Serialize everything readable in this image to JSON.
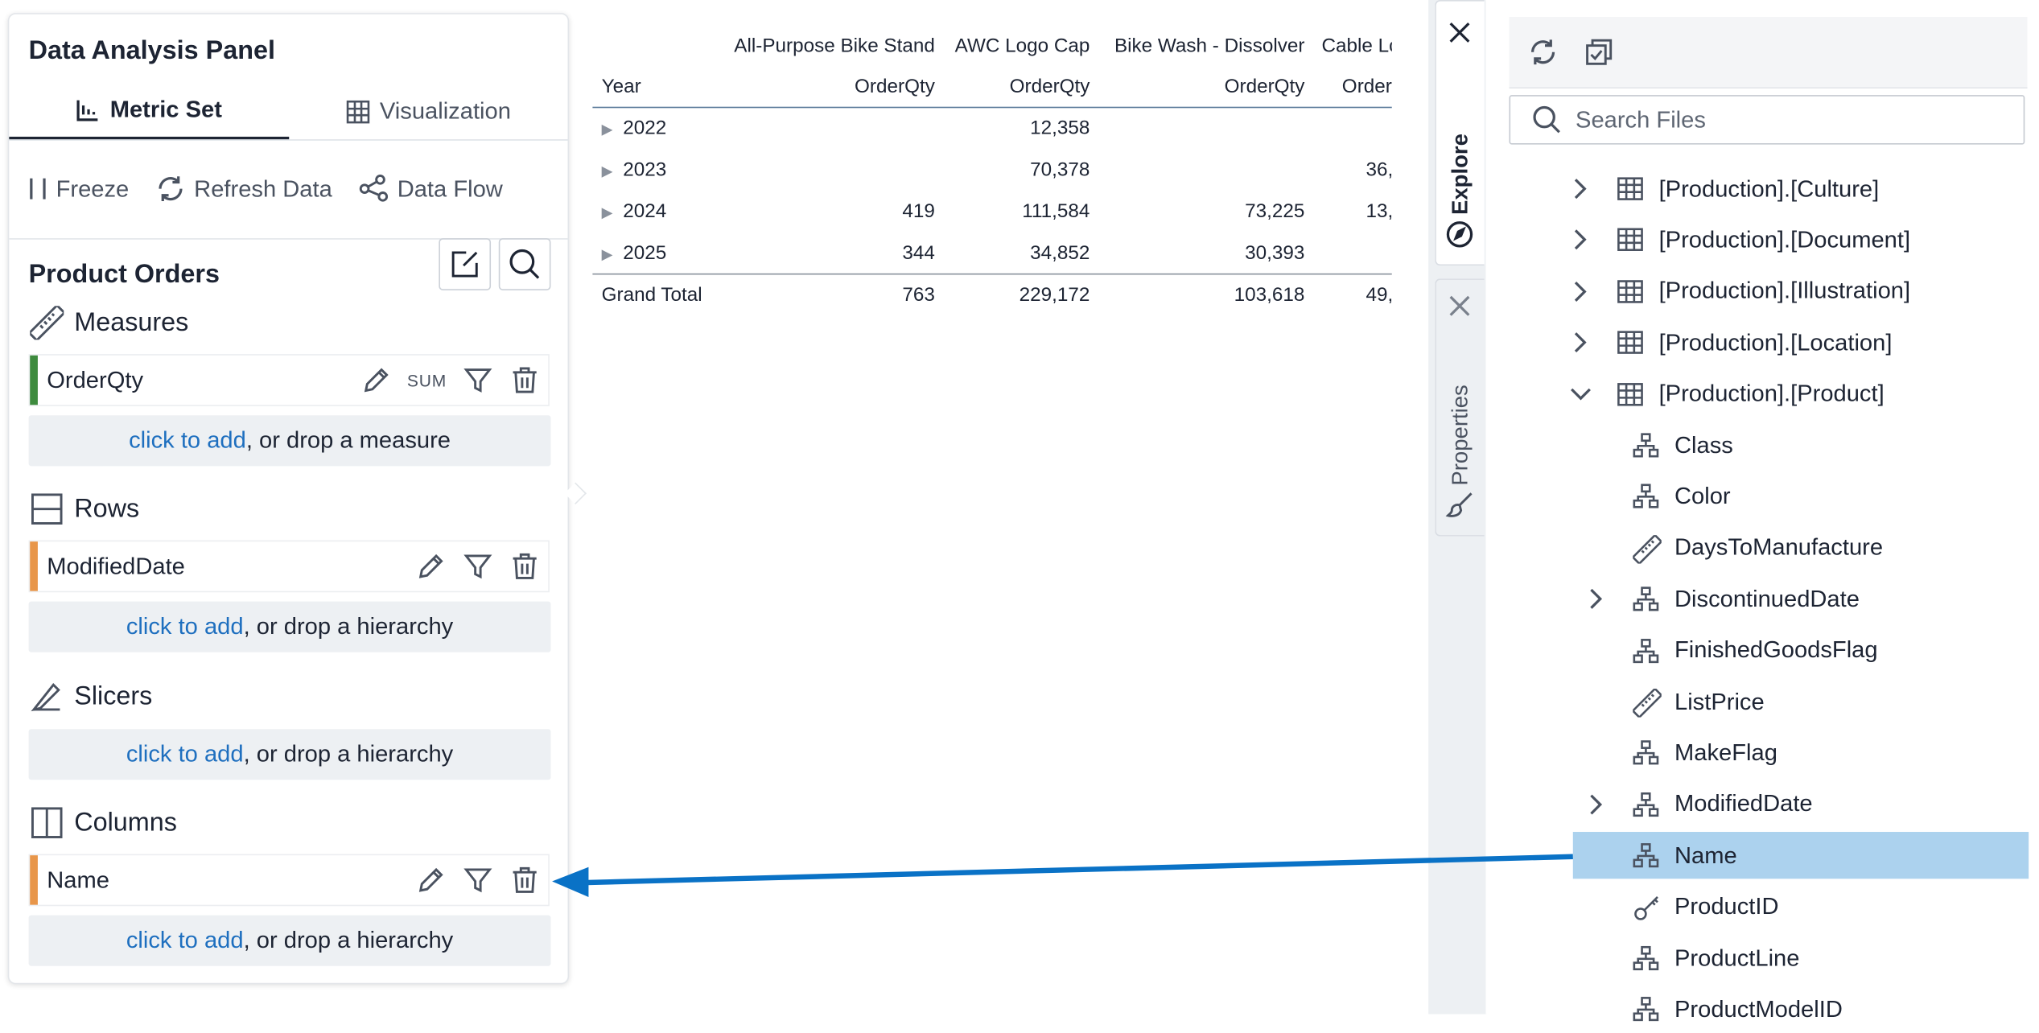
{
  "panel": {
    "title": "Data Analysis Panel",
    "tabs": [
      {
        "label": "Metric Set",
        "icon": "ruler-chart-icon",
        "active": true
      },
      {
        "label": "Visualization",
        "icon": "grid-icon",
        "active": false
      }
    ],
    "toolbar": {
      "freeze": "Freeze",
      "refresh": "Refresh Data",
      "dataflow": "Data Flow"
    },
    "metric_set_title": "Product Orders",
    "sections": {
      "measures": {
        "label": "Measures",
        "items": [
          {
            "name": "OrderQty",
            "aggregation": "SUM",
            "color": "#3e8b3e"
          }
        ],
        "drop": {
          "link": "click to add",
          "rest": ", or drop a measure"
        }
      },
      "rows": {
        "label": "Rows",
        "items": [
          {
            "name": "ModifiedDate",
            "color": "#e8964a"
          }
        ],
        "drop": {
          "link": "click to add",
          "rest": ", or drop a hierarchy"
        }
      },
      "slicers": {
        "label": "Slicers",
        "drop": {
          "link": "click to add",
          "rest": ", or drop a hierarchy"
        }
      },
      "columns": {
        "label": "Columns",
        "items": [
          {
            "name": "Name",
            "color": "#e8964a"
          }
        ],
        "drop": {
          "link": "click to add",
          "rest": ", or drop a hierarchy"
        }
      }
    }
  },
  "pivot": {
    "column_headers": [
      "All-Purpose Bike Stand",
      "AWC Logo Cap",
      "Bike Wash - Dissolver",
      "Cable Lo"
    ],
    "row_header": "Year",
    "measure_headers": [
      "OrderQty",
      "OrderQty",
      "OrderQty",
      "Order"
    ],
    "rows": [
      {
        "year": "2022",
        "values": [
          "",
          "12,358",
          "",
          ""
        ]
      },
      {
        "year": "2023",
        "values": [
          "",
          "70,378",
          "",
          "36,"
        ]
      },
      {
        "year": "2024",
        "values": [
          "419",
          "111,584",
          "73,225",
          "13,"
        ]
      },
      {
        "year": "2025",
        "values": [
          "344",
          "34,852",
          "30,393",
          ""
        ]
      }
    ],
    "grand_total": {
      "label": "Grand Total",
      "values": [
        "763",
        "229,172",
        "103,618",
        "49,:"
      ]
    }
  },
  "side_tabs": {
    "explore": "Explore",
    "properties": "Properties"
  },
  "explorer": {
    "search_placeholder": "Search Files",
    "tree": [
      {
        "label": "[Production].[Culture]",
        "type": "table",
        "expander": "collapsed",
        "level": 0
      },
      {
        "label": "[Production].[Document]",
        "type": "table",
        "expander": "collapsed",
        "level": 0
      },
      {
        "label": "[Production].[Illustration]",
        "type": "table",
        "expander": "collapsed",
        "level": 0
      },
      {
        "label": "[Production].[Location]",
        "type": "table",
        "expander": "collapsed",
        "level": 0
      },
      {
        "label": "[Production].[Product]",
        "type": "table",
        "expander": "expanded",
        "level": 0
      },
      {
        "label": "Class",
        "type": "hierarchy",
        "expander": "none",
        "level": 1
      },
      {
        "label": "Color",
        "type": "hierarchy",
        "expander": "none",
        "level": 1
      },
      {
        "label": "DaysToManufacture",
        "type": "measure",
        "expander": "none",
        "level": 1
      },
      {
        "label": "DiscontinuedDate",
        "type": "hierarchy",
        "expander": "collapsed",
        "level": 1
      },
      {
        "label": "FinishedGoodsFlag",
        "type": "hierarchy",
        "expander": "none",
        "level": 1
      },
      {
        "label": "ListPrice",
        "type": "measure",
        "expander": "none",
        "level": 1
      },
      {
        "label": "MakeFlag",
        "type": "hierarchy",
        "expander": "none",
        "level": 1
      },
      {
        "label": "ModifiedDate",
        "type": "hierarchy",
        "expander": "collapsed",
        "level": 1
      },
      {
        "label": "Name",
        "type": "hierarchy",
        "expander": "none",
        "level": 1,
        "selected": true
      },
      {
        "label": "ProductID",
        "type": "key",
        "expander": "none",
        "level": 1
      },
      {
        "label": "ProductLine",
        "type": "hierarchy",
        "expander": "none",
        "level": 1
      },
      {
        "label": "ProductModelID",
        "type": "hierarchy",
        "expander": "none",
        "level": 1
      }
    ]
  },
  "colors": {
    "accent_link": "#1e6fbf",
    "selection": "#acd2ee",
    "arrow": "#0a72c6"
  }
}
